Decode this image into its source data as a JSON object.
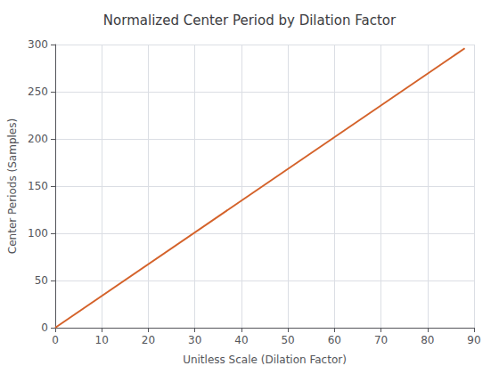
{
  "chart_data": {
    "type": "line",
    "title": "Normalized Center Period by Dilation Factor",
    "xlabel": "Unitless Scale (Dilation Factor)",
    "ylabel": "Center Periods (Samples)",
    "x": [
      0,
      88
    ],
    "values": [
      0,
      296
    ],
    "color": "#d4622a",
    "xlim": [
      0,
      90
    ],
    "ylim": [
      0,
      300
    ],
    "xticks": [
      0,
      10,
      20,
      30,
      40,
      50,
      60,
      70,
      80,
      90
    ],
    "yticks": [
      0,
      50,
      100,
      150,
      200,
      250,
      300
    ],
    "grid": true
  }
}
